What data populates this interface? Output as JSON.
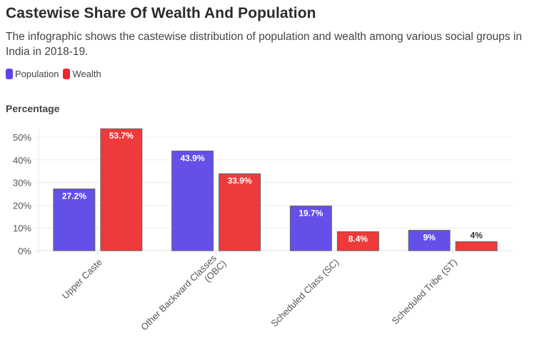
{
  "header": {
    "title": "Castewise Share Of Wealth And Population",
    "subtitle": "The infographic shows the castewise distribution of population and wealth among various social groups in India in 2018-19."
  },
  "legend": [
    {
      "label": "Population",
      "color": "#5b45ea"
    },
    {
      "label": "Wealth",
      "color": "#f0262a"
    }
  ],
  "chart_data": {
    "type": "bar",
    "title": "Castewise Share Of Wealth And Population",
    "subtitle": "The infographic shows the castewise distribution of population and wealth among various social groups in India in 2018-19.",
    "xlabel": "",
    "ylabel": "Percentage",
    "ylim": [
      0,
      55
    ],
    "yticks": [
      0,
      10,
      20,
      30,
      40,
      50
    ],
    "ytick_labels": [
      "0%",
      "10%",
      "20%",
      "30%",
      "40%",
      "50%"
    ],
    "grid": true,
    "legend_position": "top-left",
    "categories": [
      "Upper Caste",
      "Other Backward Classes (OBC)",
      "Scheduled Class (SC)",
      "Scheduled Tribe (ST)"
    ],
    "category_label_lines": [
      [
        "Upper Caste"
      ],
      [
        "Other Backward Classes",
        "(OBC)"
      ],
      [
        "Scheduled Class (SC)"
      ],
      [
        "Scheduled Tribe (ST)"
      ]
    ],
    "series": [
      {
        "name": "Population",
        "color": "#6350e8",
        "values": [
          27.2,
          43.9,
          19.7,
          9
        ],
        "labels": [
          "27.2%",
          "43.9%",
          "19.7%",
          "9%"
        ]
      },
      {
        "name": "Wealth",
        "color": "#ee3a3a",
        "values": [
          53.7,
          33.9,
          8.4,
          4
        ],
        "labels": [
          "53.7%",
          "33.9%",
          "8.4%",
          "4%"
        ]
      }
    ]
  }
}
